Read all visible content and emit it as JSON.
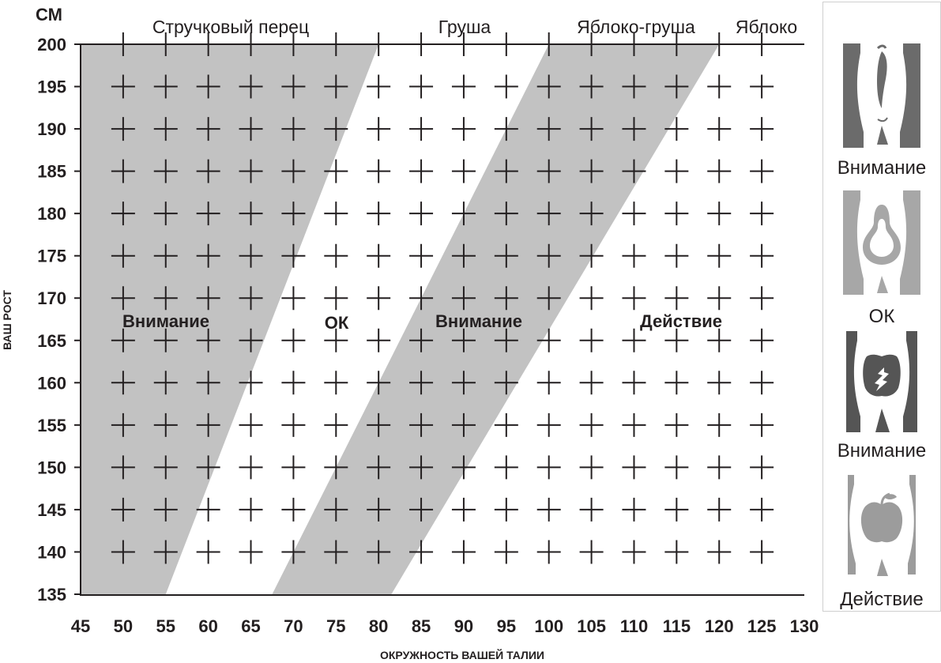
{
  "chart_data": {
    "type": "area",
    "title": "",
    "xlabel": "ОКРУЖНОСТЬ ВАШЕЙ ТАЛИИ",
    "ylabel": "ВАШ РОСТ",
    "y_unit": "СМ",
    "xlim": [
      45,
      130
    ],
    "ylim": [
      135,
      200
    ],
    "x_ticks": [
      45,
      50,
      55,
      60,
      65,
      70,
      75,
      80,
      85,
      90,
      95,
      100,
      105,
      110,
      115,
      120,
      125,
      130
    ],
    "y_ticks": [
      135,
      140,
      145,
      150,
      155,
      160,
      165,
      170,
      175,
      180,
      185,
      190,
      195,
      200
    ],
    "grid": "crosses",
    "top_labels": [
      "Стручковый перец",
      "Груша",
      "Яблоко-груша",
      "Яблоко"
    ],
    "bands": [
      {
        "label": "Внимание",
        "shaded": true,
        "left_boundary": [
          [
            45,
            135
          ],
          [
            45,
            200
          ]
        ],
        "right_boundary": [
          [
            55,
            135
          ],
          [
            80,
            200
          ]
        ]
      },
      {
        "label": "ОК",
        "shaded": false,
        "left_boundary": [
          [
            55,
            135
          ],
          [
            80,
            200
          ]
        ],
        "right_boundary": [
          [
            67.5,
            135
          ],
          [
            100,
            200
          ]
        ]
      },
      {
        "label": "Внимание",
        "shaded": true,
        "left_boundary": [
          [
            67.5,
            135
          ],
          [
            100,
            200
          ]
        ],
        "right_boundary": [
          [
            81.5,
            135
          ],
          [
            120,
            200
          ]
        ]
      },
      {
        "label": "Действие",
        "shaded": false,
        "left_boundary": [
          [
            81.5,
            135
          ],
          [
            120,
            200
          ]
        ],
        "right_boundary": [
          [
            130,
            135
          ],
          [
            130,
            200
          ]
        ]
      }
    ],
    "shade_color": "#c2c2c2"
  },
  "legend": {
    "items": [
      {
        "icon": "chili-pepper-silhouette-icon",
        "label": "Внимание"
      },
      {
        "icon": "pear-silhouette-icon",
        "label": "ОК"
      },
      {
        "icon": "apple-pear-silhouette-icon",
        "label": "Внимание"
      },
      {
        "icon": "apple-silhouette-icon",
        "label": "Действие"
      }
    ]
  }
}
